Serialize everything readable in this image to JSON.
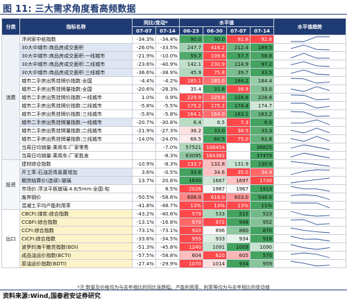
{
  "title": "图 11:  三大需求角度看高频数据",
  "headers": {
    "category": "分类",
    "indicator": "指标名称",
    "yoy_group": "同比/变动*",
    "level_group": "水平值",
    "trend": "水平值趋势",
    "yoy_dates": [
      "07-07",
      "07-14"
    ],
    "level_dates": [
      "06-23",
      "06-30",
      "07-07",
      "07-14"
    ]
  },
  "categories": [
    "消费",
    "投资",
    "出口"
  ],
  "rows": [
    {
      "cat": "消费",
      "name": "浮闲家中纸指数",
      "y1": "-34.3%",
      "y2": "-34.4%",
      "v": [
        "90.0",
        "90.0",
        "92.8",
        "92.8"
      ],
      "hl": false,
      "trend": [
        90,
        90,
        92.8,
        92.8
      ]
    },
    {
      "cat": "消费",
      "name": "30大中城市:商品房成交面积",
      "y1": "-26.0%",
      "y2": "-33.5%",
      "v": [
        "247.7",
        "416.2",
        "212.4",
        "189.5"
      ],
      "hl": true,
      "trend": [
        247.7,
        416.2,
        212.4,
        189.5
      ]
    },
    {
      "cat": "消费",
      "name": "30大中城市:商品房成交面积:一线城市",
      "y1": "-21.9%",
      "y2": "-10.0%",
      "v": [
        "59.7",
        "109.6",
        "57.7",
        "58.8"
      ],
      "hl": true,
      "trend": [
        59.7,
        109.6,
        57.7,
        58.8
      ]
    },
    {
      "cat": "消费",
      "name": "30大中城市:商品房成交面积:二线城市",
      "y1": "-23.6%",
      "y2": "-40.9%",
      "v": [
        "142.1",
        "230.9",
        "114.9",
        "97.2"
      ],
      "hl": true,
      "trend": [
        142.1,
        230.9,
        114.9,
        97.2
      ]
    },
    {
      "cat": "消费",
      "name": "30大中城市:商品房成交面积:三线城市",
      "y1": "-36.6%",
      "y2": "-38.9%",
      "v": [
        "45.9",
        "75.8",
        "39.7",
        "33.5"
      ],
      "hl": true,
      "trend": [
        45.9,
        75.8,
        39.7,
        33.5
      ]
    },
    {
      "cat": "消费",
      "name": "城市二手房出售挂牌价指数:全国",
      "y1": "-4.4%",
      "y2": "-4.2%",
      "v": [
        "185.1",
        "185.0",
        "184.2",
        "184.4"
      ],
      "hl": false,
      "trend": [
        185.1,
        185,
        184.2,
        184.4
      ]
    },
    {
      "cat": "消费",
      "name": "城市二手房出售挂牌量指数:全国",
      "y1": "-20.6%",
      "y2": "-28.3%",
      "v": [
        "35.4",
        "31.8",
        "38.9",
        "33.0"
      ],
      "hl": false,
      "trend": [
        35.4,
        31.8,
        38.9,
        33
      ]
    },
    {
      "cat": "消费",
      "name": "城市二手房出售挂牌价指数:一线城市",
      "y1": "1.0%",
      "y2": "0.9%",
      "v": [
        "229.9",
        "229.8",
        "228.6",
        "228.8"
      ],
      "hl": false,
      "trend": [
        229.9,
        229.8,
        228.6,
        228.8
      ]
    },
    {
      "cat": "消费",
      "name": "城市二手房出售挂牌价指数:二线城市",
      "y1": "-5.8%",
      "y2": "-5.5%",
      "v": [
        "175.2",
        "175.2",
        "174.4",
        "174.7"
      ],
      "hl": false,
      "trend": [
        175.2,
        175.2,
        174.4,
        174.7
      ]
    },
    {
      "cat": "消费",
      "name": "城市二手房出售挂牌价指数:三线城市",
      "y1": "-5.8%",
      "y2": "-5.8%",
      "v": [
        "164.1",
        "164.0",
        "163.1",
        "163.2"
      ],
      "hl": false,
      "trend": [
        164.1,
        164,
        163.1,
        163.2
      ]
    },
    {
      "cat": "消费",
      "name": "城市二手房出售挂牌量指数:一线城市",
      "y1": "-20.7%",
      "y2": "-30.8%",
      "v": [
        "6.4",
        "6.5",
        "7.3",
        "6.0"
      ],
      "hl": true,
      "trend": [
        6.4,
        6.5,
        7.3,
        6.0
      ]
    },
    {
      "cat": "消费",
      "name": "城市二手房出售挂牌量指数:二线城市",
      "y1": "-21.9%",
      "y2": "-27.3%",
      "v": [
        "36.2",
        "33.0",
        "38.5",
        "33.3"
      ],
      "hl": false,
      "trend": [
        36.2,
        33,
        38.5,
        33.3
      ]
    },
    {
      "cat": "消费",
      "name": "城市二手房出售挂牌量指数:三线城市",
      "y1": "-14.0%",
      "y2": "-24.0%",
      "v": [
        "68.5",
        "60.5",
        "75.0",
        "61.8"
      ],
      "hl": false,
      "trend": [
        68.5,
        60.5,
        75,
        61.8
      ]
    },
    {
      "cat": "消费",
      "name": "当周日均销量:乘用车:厂家零售",
      "y1": "",
      "y2": "-7.0%",
      "v": [
        "57521",
        "108454",
        "",
        "36825"
      ],
      "hl": false,
      "trend": [
        57521,
        108454,
        null,
        36825
      ]
    },
    {
      "cat": "消费",
      "name": "当周日均销量:乘用车:厂家批发",
      "y1": "",
      "y2": "-8.3%",
      "v": [
        "63095",
        "164382",
        "",
        "37479"
      ],
      "hl": false,
      "trend": [
        63095,
        164382,
        null,
        37479
      ]
    },
    {
      "cat": "投资",
      "name": "建材综合指数",
      "y1": "-10.9%",
      "y2": "-8.3%",
      "v": [
        "133.7",
        "132.8",
        "131.9",
        "130.9"
      ],
      "hl": false,
      "trend": [
        133.7,
        132.8,
        131.9,
        130.9
      ]
    },
    {
      "cat": "投资",
      "name": "开工率:石油沥青装置增加",
      "y1": "3.6%",
      "y2": "-0.5%",
      "v": [
        "33.8",
        "34.6",
        "35.0",
        "34.9"
      ],
      "hl": true,
      "trend": [
        33.8,
        34.6,
        35,
        34.9
      ]
    },
    {
      "cat": "投资",
      "name": "期货结算价(连续):玻璃",
      "y1": "13.7%",
      "y2": "20.6%",
      "v": [
        "1630",
        "1667",
        "1697",
        "1730"
      ],
      "hl": true,
      "trend": [
        1630,
        1667,
        1697,
        1730
      ]
    },
    {
      "cat": "投资",
      "name": "市场价:浮法平板玻璃:4.8/5mm:全国:旬",
      "y1": "",
      "y2": "8.5%",
      "v": [
        "2026",
        "1967",
        "1967",
        "1913"
      ],
      "hl": false,
      "trend": [
        2026,
        1967,
        1967,
        1913
      ]
    },
    {
      "cat": "投资",
      "name": "废弃钢价",
      "y1": "-50.5%",
      "y2": "-58.6%",
      "v": [
        "606.0",
        "618.0",
        "603.0",
        "548.0"
      ],
      "hl": false,
      "trend": [
        606,
        618,
        603,
        548
      ]
    },
    {
      "cat": "投资",
      "name": "混凝土平均产能利用率",
      "y1": "-41.8%",
      "y2": "-48.7%",
      "v": [
        "13%",
        "13%",
        "13%",
        "11%"
      ],
      "hl": false,
      "trend": [
        13,
        13,
        13,
        11
      ]
    },
    {
      "cat": "出口",
      "name": "CBCFI:煤炭:综合指数",
      "y1": "-43.2%",
      "y2": "-40.6%",
      "v": [
        "579",
        "533",
        "515",
        "523"
      ],
      "hl": false,
      "ylw": true,
      "trend": [
        579,
        533,
        515,
        523
      ]
    },
    {
      "cat": "出口",
      "name": "CCBFI:综合指数",
      "y1": "-13.1%",
      "y2": "-16.8%",
      "v": [
        "970",
        "972",
        "948",
        "952"
      ],
      "hl": false,
      "ylw": true,
      "trend": [
        970,
        972,
        948,
        952
      ]
    },
    {
      "cat": "出口",
      "name": "CCFI:综合指数",
      "y1": "-73.1%",
      "y2": "-73.1%",
      "v": [
        "920",
        "896",
        "880",
        "870"
      ],
      "hl": false,
      "ylw": true,
      "trend": [
        920,
        896,
        880,
        870
      ]
    },
    {
      "cat": "出口",
      "name": "CICFI:综合指数",
      "y1": "-33.6%",
      "y2": "-34.5%",
      "v": [
        "955",
        "933",
        "934",
        "918"
      ],
      "hl": false,
      "ylw": true,
      "trend": [
        955,
        933,
        934,
        918
      ]
    },
    {
      "cat": "出口",
      "name": "波罗的海干散货指数(BDI)",
      "y1": "-51.3%",
      "y2": "-45.8%",
      "v": [
        "1240",
        "1091",
        "1009",
        "1090"
      ],
      "hl": false,
      "ylw": true,
      "trend": [
        1240,
        1091,
        1009,
        1090
      ]
    },
    {
      "cat": "出口",
      "name": "成品油运价指数(BCTI)",
      "y1": "-57.5%",
      "y2": "-58.8%",
      "v": [
        "604",
        "620",
        "605",
        "570"
      ],
      "hl": false,
      "ylw": true,
      "trend": [
        604,
        620,
        605,
        570
      ]
    },
    {
      "cat": "出口",
      "name": "原油运价指数(BDTI)",
      "y1": "-27.4%",
      "y2": "-29.9%",
      "v": [
        "1070",
        "1014",
        "934",
        "959"
      ],
      "hl": false,
      "ylw": true,
      "trend": [
        1070,
        1014,
        934,
        959
      ]
    }
  ],
  "note": "*注:数量及价格均为与去年相比的同比涨跌幅。产能利用率、利率等均为与去年相比的变动值",
  "source": "资料来源:Wind,国泰君安证券研究",
  "colors": {
    "accent": "#1f3b73",
    "high": "#e8484a",
    "low": "#43a35f",
    "trend_line": "#2f5597"
  }
}
